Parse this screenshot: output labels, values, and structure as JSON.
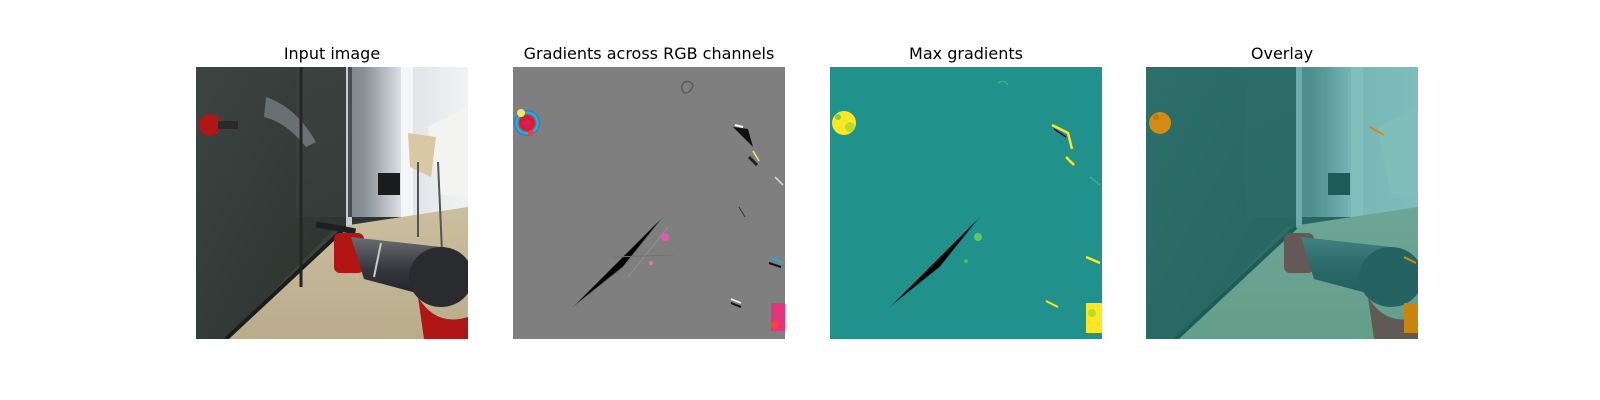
{
  "panels": [
    {
      "title": "Input image",
      "image_icon": "robot-arm-scene-photo"
    },
    {
      "title": "Gradients across RGB channels",
      "image_icon": "rgb-gradient-map"
    },
    {
      "title": "Max gradients",
      "image_icon": "max-gradient-heatmap"
    },
    {
      "title": "Overlay",
      "image_icon": "gradient-overlay-photo"
    }
  ],
  "colors": {
    "gradient_gray": "#7f7f7f",
    "viridis_teal": "#21918c",
    "viridis_yellow": "#fde725",
    "robot_red": "#b31515"
  }
}
